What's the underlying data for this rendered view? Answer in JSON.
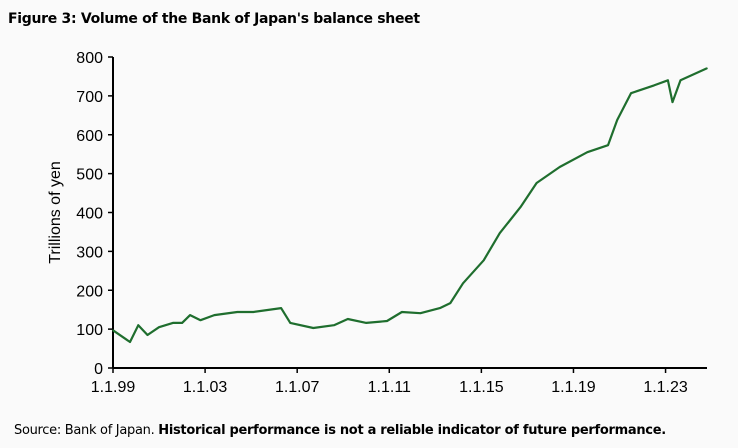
{
  "chart_data": {
    "type": "line",
    "title": "Figure 3: Volume of the Bank of Japan's balance sheet",
    "xlabel": "",
    "ylabel": "Trillions of yen",
    "ylim": [
      0,
      800
    ],
    "yticks": [
      0,
      100,
      200,
      300,
      400,
      500,
      600,
      700,
      800
    ],
    "xlim": [
      1999,
      2024.8
    ],
    "xticks": [
      {
        "x": 1999,
        "label": "1.1.99"
      },
      {
        "x": 2003,
        "label": "1.1.03"
      },
      {
        "x": 2007,
        "label": "1.1.07"
      },
      {
        "x": 2011,
        "label": "1.1.11"
      },
      {
        "x": 2015,
        "label": "1.1.15"
      },
      {
        "x": 2019,
        "label": "1.1.19"
      },
      {
        "x": 2023,
        "label": "1.1.23"
      }
    ],
    "grid": false,
    "color": "#1f6e2e",
    "series": [
      {
        "x": [
          1999.0,
          1999.74,
          2000.1,
          2000.5,
          2001.0,
          2001.6,
          2002.0,
          2002.35,
          2002.8,
          2003.4,
          2004.4,
          2005.1,
          2006.3,
          2006.7,
          2007.7,
          2008.6,
          2009.2,
          2010.0,
          2010.9,
          2011.55,
          2012.35,
          2013.2,
          2013.65,
          2014.2,
          2015.1,
          2015.8,
          2016.7,
          2017.4,
          2018.4,
          2019.6,
          2020.5,
          2020.9,
          2021.5,
          2022.5,
          2023.1,
          2023.3,
          2023.65,
          2024.8
        ],
        "values": [
          97,
          67,
          110,
          85,
          105,
          116,
          116,
          136,
          123,
          136,
          144,
          144,
          154,
          116,
          103,
          110,
          126,
          116,
          121,
          144,
          141,
          154,
          167,
          218,
          277,
          347,
          414,
          476,
          517,
          555,
          573,
          638,
          707,
          727,
          740,
          684,
          740,
          771
        ]
      }
    ]
  },
  "source": {
    "prefix": "Source: Bank of Japan. ",
    "bold": "Historical performance is not a reliable indicator of future performance."
  }
}
